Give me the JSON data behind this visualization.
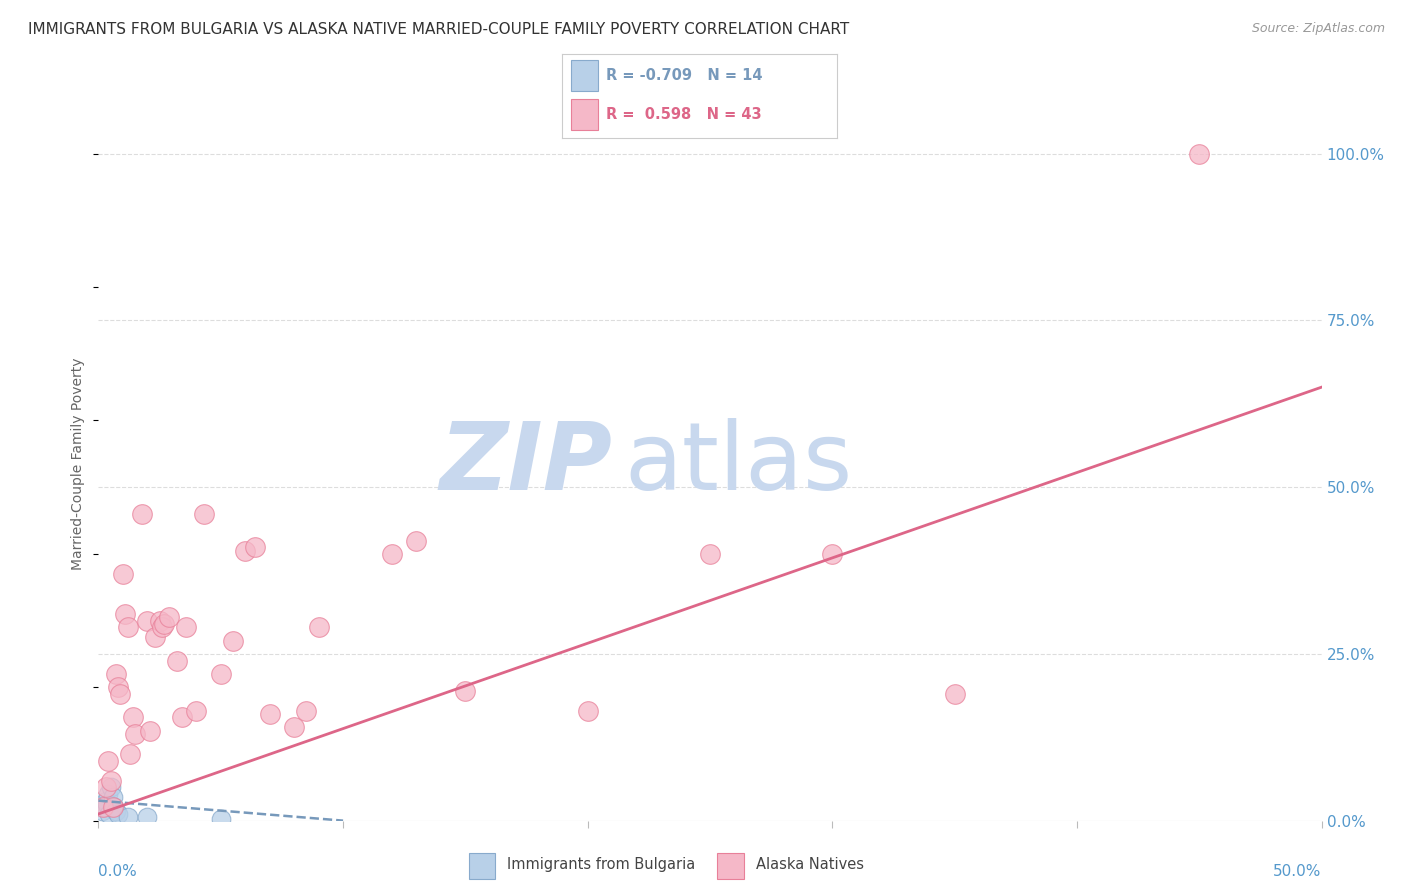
{
  "title": "IMMIGRANTS FROM BULGARIA VS ALASKA NATIVE MARRIED-COUPLE FAMILY POVERTY CORRELATION CHART",
  "source": "Source: ZipAtlas.com",
  "ylabel": "Married-Couple Family Poverty",
  "x_label_0": "0.0%",
  "x_label_50": "50.0%",
  "y_labels": [
    "0.0%",
    "25.0%",
    "50.0%",
    "75.0%",
    "100.0%"
  ],
  "xlim": [
    0.0,
    50.0
  ],
  "ylim": [
    0.0,
    107.0
  ],
  "legend_label_blue": "Immigrants from Bulgaria",
  "legend_label_pink": "Alaska Natives",
  "blue_color": "#b8d0e8",
  "pink_color": "#f5b8c8",
  "blue_edge": "#88aacc",
  "pink_edge": "#e88099",
  "trendline_blue_color": "#7799bb",
  "trendline_pink_color": "#dd6688",
  "background_color": "#ffffff",
  "watermark_zip": "ZIP",
  "watermark_atlas": "atlas",
  "watermark_color_zip": "#c8d8ee",
  "watermark_color_atlas": "#c8d8ee",
  "title_color": "#333333",
  "axis_label_color": "#5599cc",
  "grid_color": "#dddddd",
  "blue_scatter": [
    [
      0.15,
      1.5
    ],
    [
      0.25,
      2.0
    ],
    [
      0.3,
      3.0
    ],
    [
      0.35,
      2.5
    ],
    [
      0.4,
      4.0
    ],
    [
      0.45,
      1.0
    ],
    [
      0.5,
      5.0
    ],
    [
      0.6,
      3.5
    ],
    [
      0.65,
      2.0
    ],
    [
      0.7,
      1.5
    ],
    [
      0.8,
      1.0
    ],
    [
      1.2,
      0.5
    ],
    [
      2.0,
      0.5
    ],
    [
      5.0,
      0.3
    ]
  ],
  "pink_scatter": [
    [
      0.2,
      2.0
    ],
    [
      0.3,
      5.0
    ],
    [
      0.4,
      9.0
    ],
    [
      0.5,
      6.0
    ],
    [
      0.6,
      2.0
    ],
    [
      0.7,
      22.0
    ],
    [
      0.8,
      20.0
    ],
    [
      0.9,
      19.0
    ],
    [
      1.0,
      37.0
    ],
    [
      1.1,
      31.0
    ],
    [
      1.2,
      29.0
    ],
    [
      1.3,
      10.0
    ],
    [
      1.4,
      15.5
    ],
    [
      1.5,
      13.0
    ],
    [
      1.8,
      46.0
    ],
    [
      2.0,
      30.0
    ],
    [
      2.1,
      13.5
    ],
    [
      2.3,
      27.5
    ],
    [
      2.5,
      30.0
    ],
    [
      2.6,
      29.0
    ],
    [
      2.7,
      29.5
    ],
    [
      2.9,
      30.5
    ],
    [
      3.2,
      24.0
    ],
    [
      3.4,
      15.5
    ],
    [
      3.6,
      29.0
    ],
    [
      4.0,
      16.5
    ],
    [
      4.3,
      46.0
    ],
    [
      5.0,
      22.0
    ],
    [
      5.5,
      27.0
    ],
    [
      6.0,
      40.5
    ],
    [
      6.4,
      41.0
    ],
    [
      7.0,
      16.0
    ],
    [
      8.0,
      14.0
    ],
    [
      8.5,
      16.5
    ],
    [
      9.0,
      29.0
    ],
    [
      12.0,
      40.0
    ],
    [
      13.0,
      42.0
    ],
    [
      15.0,
      19.5
    ],
    [
      20.0,
      16.5
    ],
    [
      25.0,
      40.0
    ],
    [
      30.0,
      40.0
    ],
    [
      35.0,
      19.0
    ],
    [
      45.0,
      100.0
    ]
  ],
  "blue_trend_x": [
    0.0,
    10.0
  ],
  "blue_trend_y": [
    3.0,
    0.0
  ],
  "pink_trend_x": [
    0.0,
    50.0
  ],
  "pink_trend_y": [
    1.0,
    65.0
  ]
}
